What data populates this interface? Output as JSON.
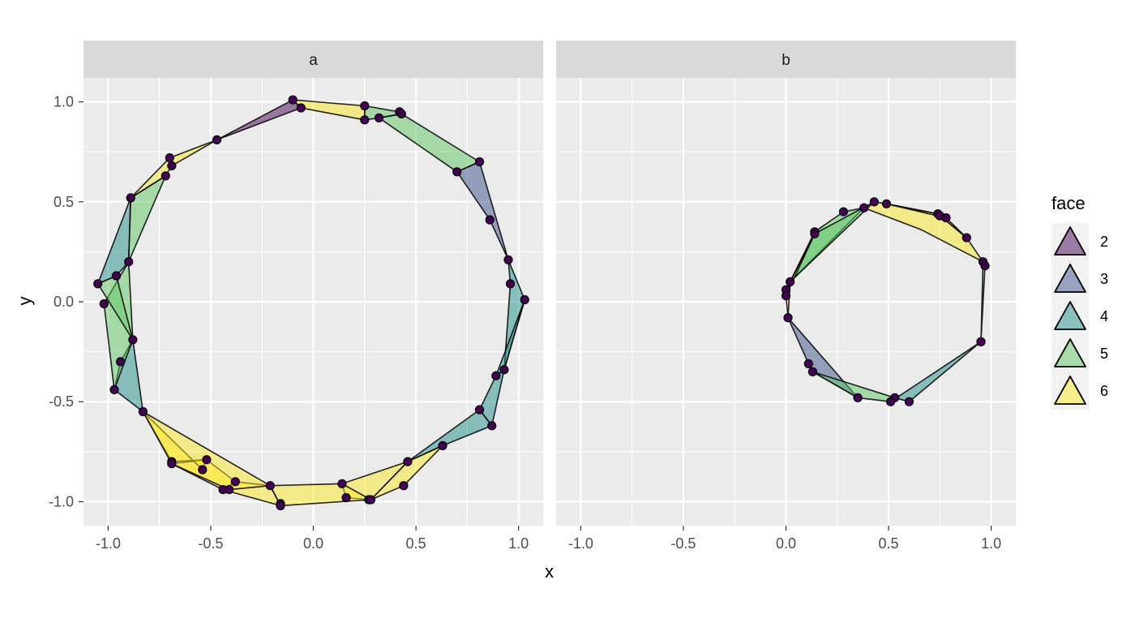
{
  "chart_data": {
    "type": "scatter",
    "xlabel": "x",
    "ylabel": "y",
    "xlim": [
      -1.12,
      1.12
    ],
    "ylim": [
      -1.12,
      1.12
    ],
    "x_ticks": [
      -1.0,
      -0.5,
      0.0,
      0.5,
      1.0
    ],
    "x_tick_labels": [
      "-1.0",
      "-0.5",
      "0.0",
      "0.5",
      "1.0"
    ],
    "y_ticks": [
      -1.0,
      -0.5,
      0.0,
      0.5,
      1.0
    ],
    "y_tick_labels": [
      "-1.0",
      "-0.5",
      "0.0",
      "0.5",
      "1.0"
    ],
    "grid": true,
    "legend": {
      "title": "face",
      "placement": "right",
      "entries": [
        {
          "label": "2",
          "color": "#440154"
        },
        {
          "label": "3",
          "color": "#3B528B"
        },
        {
          "label": "4",
          "color": "#21908C"
        },
        {
          "label": "5",
          "color": "#5DC863"
        },
        {
          "label": "6",
          "color": "#FDE725"
        }
      ]
    },
    "point_color": "#440154",
    "fill_opacity": 0.5,
    "panels": [
      {
        "name": "a",
        "points": [
          [
            -0.1,
            1.01
          ],
          [
            -0.06,
            0.97
          ],
          [
            0.25,
            0.98
          ],
          [
            0.42,
            0.95
          ],
          [
            0.25,
            0.91
          ],
          [
            0.32,
            0.92
          ],
          [
            0.43,
            0.94
          ],
          [
            -0.47,
            0.81
          ],
          [
            -0.7,
            0.72
          ],
          [
            -0.69,
            0.68
          ],
          [
            -0.72,
            0.63
          ],
          [
            -0.89,
            0.52
          ],
          [
            0.81,
            0.7
          ],
          [
            0.7,
            0.65
          ],
          [
            0.86,
            0.41
          ],
          [
            0.95,
            0.21
          ],
          [
            0.96,
            0.09
          ],
          [
            1.03,
            0.01
          ],
          [
            -1.05,
            0.09
          ],
          [
            -0.96,
            0.13
          ],
          [
            -0.9,
            0.2
          ],
          [
            -1.02,
            -0.01
          ],
          [
            -0.88,
            -0.19
          ],
          [
            -0.94,
            -0.3
          ],
          [
            -0.97,
            -0.44
          ],
          [
            -0.83,
            -0.55
          ],
          [
            0.93,
            -0.34
          ],
          [
            0.89,
            -0.37
          ],
          [
            0.81,
            -0.54
          ],
          [
            0.87,
            -0.62
          ],
          [
            0.63,
            -0.72
          ],
          [
            -0.69,
            -0.8
          ],
          [
            -0.69,
            -0.81
          ],
          [
            -0.52,
            -0.79
          ],
          [
            -0.54,
            -0.84
          ],
          [
            0.46,
            -0.8
          ],
          [
            0.44,
            -0.92
          ],
          [
            -0.44,
            -0.94
          ],
          [
            -0.41,
            -0.94
          ],
          [
            -0.38,
            -0.9
          ],
          [
            -0.21,
            -0.92
          ],
          [
            0.14,
            -0.91
          ],
          [
            0.16,
            -0.98
          ],
          [
            0.27,
            -0.99
          ],
          [
            0.28,
            -0.99
          ],
          [
            -0.16,
            -1.01
          ],
          [
            -0.16,
            -1.02
          ]
        ],
        "faces": [
          {
            "face": 2,
            "pts": [
              [
                -0.47,
                0.81
              ],
              [
                -0.1,
                1.01
              ],
              [
                -0.06,
                0.97
              ]
            ]
          },
          {
            "face": 6,
            "pts": [
              [
                -0.1,
                1.01
              ],
              [
                0.25,
                0.98
              ],
              [
                0.25,
                0.91
              ],
              [
                -0.06,
                0.97
              ]
            ]
          },
          {
            "face": 5,
            "pts": [
              [
                0.25,
                0.98
              ],
              [
                0.42,
                0.95
              ],
              [
                0.43,
                0.94
              ],
              [
                0.32,
                0.92
              ],
              [
                0.25,
                0.91
              ]
            ]
          },
          {
            "face": 5,
            "pts": [
              [
                0.43,
                0.94
              ],
              [
                0.81,
                0.7
              ],
              [
                0.7,
                0.65
              ],
              [
                0.32,
                0.92
              ]
            ]
          },
          {
            "face": 3,
            "pts": [
              [
                0.81,
                0.7
              ],
              [
                0.7,
                0.65
              ],
              [
                0.86,
                0.41
              ],
              [
                0.95,
                0.21
              ]
            ]
          },
          {
            "face": 4,
            "pts": [
              [
                0.95,
                0.21
              ],
              [
                1.03,
                0.01
              ],
              [
                0.93,
                -0.34
              ],
              [
                0.96,
                0.09
              ]
            ]
          },
          {
            "face": 4,
            "pts": [
              [
                1.03,
                0.01
              ],
              [
                0.93,
                -0.34
              ],
              [
                0.89,
                -0.37
              ]
            ]
          },
          {
            "face": 4,
            "pts": [
              [
                0.93,
                -0.34
              ],
              [
                0.87,
                -0.62
              ],
              [
                0.81,
                -0.54
              ],
              [
                0.89,
                -0.37
              ]
            ]
          },
          {
            "face": 4,
            "pts": [
              [
                0.81,
                -0.54
              ],
              [
                0.87,
                -0.62
              ],
              [
                0.63,
                -0.72
              ],
              [
                0.46,
                -0.8
              ]
            ]
          },
          {
            "face": 6,
            "pts": [
              [
                0.46,
                -0.8
              ],
              [
                0.63,
                -0.72
              ],
              [
                0.44,
                -0.92
              ],
              [
                0.28,
                -0.99
              ]
            ]
          },
          {
            "face": 6,
            "pts": [
              [
                0.46,
                -0.8
              ],
              [
                0.28,
                -0.99
              ],
              [
                0.16,
                -0.98
              ],
              [
                0.14,
                -0.91
              ]
            ]
          },
          {
            "face": 6,
            "pts": [
              [
                0.14,
                -0.91
              ],
              [
                0.28,
                -0.99
              ],
              [
                -0.16,
                -1.02
              ],
              [
                -0.21,
                -0.92
              ]
            ]
          },
          {
            "face": 6,
            "pts": [
              [
                -0.21,
                -0.92
              ],
              [
                -0.16,
                -1.02
              ],
              [
                -0.44,
                -0.94
              ],
              [
                -0.38,
                -0.9
              ]
            ]
          },
          {
            "face": 6,
            "pts": [
              [
                -0.38,
                -0.9
              ],
              [
                -0.44,
                -0.94
              ],
              [
                -0.69,
                -0.81
              ],
              [
                -0.52,
                -0.79
              ]
            ]
          },
          {
            "face": 6,
            "pts": [
              [
                -0.52,
                -0.79
              ],
              [
                -0.69,
                -0.8
              ],
              [
                -0.83,
                -0.55
              ],
              [
                -0.54,
                -0.84
              ]
            ]
          },
          {
            "face": 6,
            "pts": [
              [
                -0.83,
                -0.55
              ],
              [
                -0.69,
                -0.81
              ],
              [
                -0.41,
                -0.94
              ],
              [
                -0.21,
                -0.92
              ]
            ]
          },
          {
            "face": 4,
            "pts": [
              [
                -0.83,
                -0.55
              ],
              [
                -0.97,
                -0.44
              ],
              [
                -0.94,
                -0.3
              ],
              [
                -0.88,
                -0.19
              ]
            ]
          },
          {
            "face": 5,
            "pts": [
              [
                -0.88,
                -0.19
              ],
              [
                -0.97,
                -0.44
              ],
              [
                -1.02,
                -0.01
              ],
              [
                -0.9,
                0.2
              ]
            ]
          },
          {
            "face": 5,
            "pts": [
              [
                -0.96,
                0.13
              ],
              [
                -1.05,
                0.09
              ],
              [
                -0.88,
                -0.19
              ]
            ]
          },
          {
            "face": 4,
            "pts": [
              [
                -1.05,
                0.09
              ],
              [
                -0.89,
                0.52
              ],
              [
                -0.9,
                0.2
              ],
              [
                -0.96,
                0.13
              ]
            ]
          },
          {
            "face": 5,
            "pts": [
              [
                -0.89,
                0.52
              ],
              [
                -0.72,
                0.63
              ],
              [
                -0.9,
                0.2
              ]
            ]
          },
          {
            "face": 6,
            "pts": [
              [
                -0.89,
                0.52
              ],
              [
                -0.7,
                0.72
              ],
              [
                -0.69,
                0.68
              ],
              [
                -0.72,
                0.63
              ]
            ]
          },
          {
            "face": 6,
            "pts": [
              [
                -0.7,
                0.72
              ],
              [
                -0.47,
                0.81
              ],
              [
                -0.69,
                0.68
              ]
            ]
          }
        ]
      },
      {
        "name": "b",
        "points": [
          [
            0.43,
            0.5
          ],
          [
            0.49,
            0.49
          ],
          [
            0.38,
            0.47
          ],
          [
            0.28,
            0.45
          ],
          [
            0.74,
            0.44
          ],
          [
            0.75,
            0.43
          ],
          [
            0.78,
            0.42
          ],
          [
            0.14,
            0.35
          ],
          [
            0.14,
            0.34
          ],
          [
            0.88,
            0.32
          ],
          [
            0.96,
            0.2
          ],
          [
            0.97,
            0.18
          ],
          [
            0.02,
            0.1
          ],
          [
            0.0,
            0.06
          ],
          [
            0.0,
            0.03
          ],
          [
            0.01,
            -0.08
          ],
          [
            0.95,
            -0.2
          ],
          [
            0.95,
            -0.2
          ],
          [
            0.11,
            -0.31
          ],
          [
            0.13,
            -0.35
          ],
          [
            0.35,
            -0.48
          ],
          [
            0.53,
            -0.48
          ],
          [
            0.51,
            -0.5
          ],
          [
            0.6,
            -0.5
          ]
        ],
        "faces": [
          {
            "face": 6,
            "pts": [
              [
                0.38,
                0.47
              ],
              [
                0.43,
                0.5
              ],
              [
                0.49,
                0.49
              ],
              [
                0.74,
                0.44
              ],
              [
                0.88,
                0.32
              ],
              [
                0.96,
                0.2
              ],
              [
                0.66,
                0.36
              ]
            ]
          },
          {
            "face": 6,
            "pts": [
              [
                0.49,
                0.49
              ],
              [
                0.78,
                0.42
              ],
              [
                0.88,
                0.32
              ],
              [
                0.74,
                0.44
              ]
            ]
          },
          {
            "face": 5,
            "pts": [
              [
                0.96,
                0.2
              ],
              [
                0.97,
                0.18
              ],
              [
                0.95,
                -0.2
              ]
            ]
          },
          {
            "face": 5,
            "pts": [
              [
                0.14,
                0.35
              ],
              [
                0.28,
                0.45
              ],
              [
                0.38,
                0.47
              ],
              [
                0.02,
                0.1
              ]
            ]
          },
          {
            "face": 5,
            "pts": [
              [
                0.14,
                0.34
              ],
              [
                0.43,
                0.5
              ],
              [
                0.02,
                0.1
              ]
            ]
          },
          {
            "face": 6,
            "pts": [
              [
                0.02,
                0.1
              ],
              [
                0.14,
                0.34
              ],
              [
                0.0,
                0.03
              ],
              [
                0.01,
                -0.08
              ]
            ]
          },
          {
            "face": 3,
            "pts": [
              [
                0.01,
                -0.08
              ],
              [
                0.11,
                -0.31
              ],
              [
                0.13,
                -0.35
              ],
              [
                0.35,
                -0.48
              ]
            ]
          },
          {
            "face": 5,
            "pts": [
              [
                0.13,
                -0.35
              ],
              [
                0.35,
                -0.48
              ],
              [
                0.51,
                -0.5
              ],
              [
                0.53,
                -0.48
              ]
            ]
          },
          {
            "face": 4,
            "pts": [
              [
                0.53,
                -0.48
              ],
              [
                0.6,
                -0.5
              ],
              [
                0.95,
                -0.2
              ],
              [
                0.51,
                -0.5
              ]
            ]
          }
        ]
      }
    ]
  }
}
